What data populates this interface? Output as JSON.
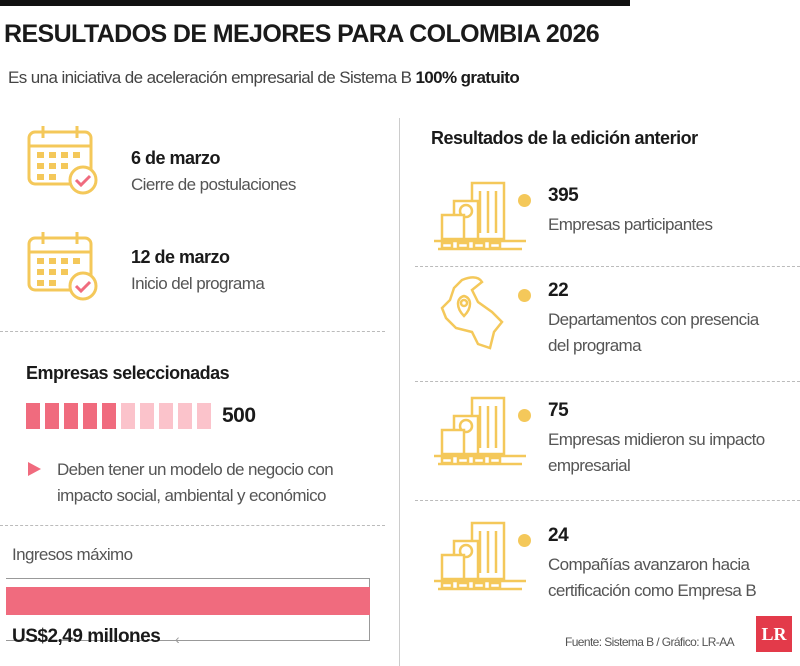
{
  "header": {
    "title": "RESULTADOS DE MEJORES PARA COLOMBIA 2026",
    "subtitle_prefix": "Es una iniciativa de aceleración empresarial de Sistema B ",
    "subtitle_bold": "100% gratuito"
  },
  "dates": [
    {
      "date": "6 de marzo",
      "label": "Cierre de postulaciones",
      "icon": "calendar-check-icon"
    },
    {
      "date": "12 de marzo",
      "label": "Inicio del programa",
      "icon": "calendar-check-icon"
    }
  ],
  "selected": {
    "title": "Empresas seleccionadas",
    "value": "500",
    "filled_fraction": 0.5,
    "note": "Deben tener un modelo de negocio con impacto social, ambiental y económico"
  },
  "income": {
    "title": "Ingresos máximo",
    "value": "US$2,49 millones"
  },
  "previous": {
    "title": "Resultados de la edición anterior",
    "items": [
      {
        "value": "395",
        "label": "Empresas participantes",
        "icon": "buildings-icon"
      },
      {
        "value": "22",
        "label": "Departamentos con presencia del programa",
        "icon": "colombia-map-icon"
      },
      {
        "value": "75",
        "label": "Empresas midieron su impacto empresarial",
        "icon": "buildings-icon"
      },
      {
        "value": "24",
        "label": "Compañías avanzaron hacia certificación como Empresa B",
        "icon": "buildings-icon"
      }
    ]
  },
  "footer": {
    "source": "Fuente: Sistema B / Gráfico: LR-AA",
    "logo": "LR"
  },
  "colors": {
    "pink": "#f06b7e",
    "pink_light": "#fbc3cb",
    "gold": "#f4c85a"
  }
}
